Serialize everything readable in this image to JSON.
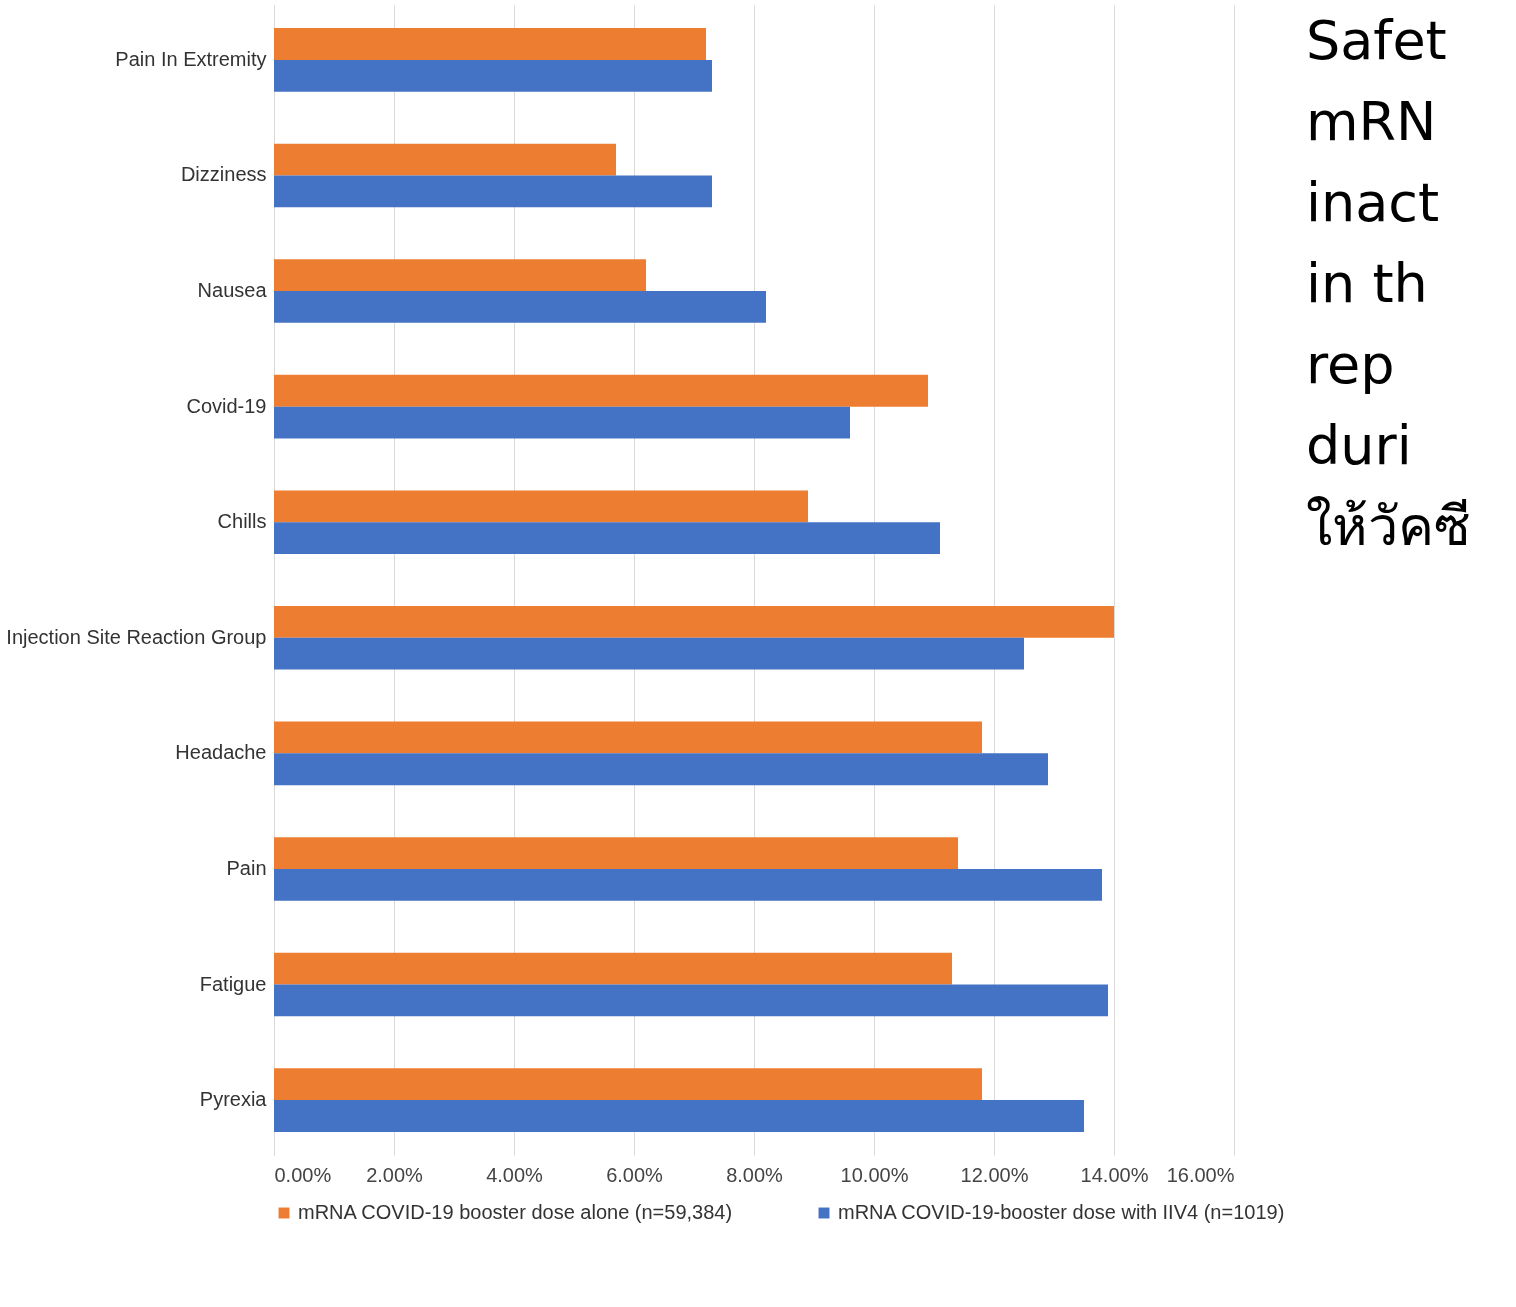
{
  "chart_data": {
    "type": "bar",
    "orientation": "horizontal",
    "categories": [
      "Pain In Extremity",
      "Dizziness",
      "Nausea",
      "Covid-19",
      "Chills",
      "Injection Site Reaction Group",
      "Headache",
      "Pain",
      "Fatigue",
      "Pyrexia"
    ],
    "series": [
      {
        "name": "mRNA COVID-19 booster dose alone (n=59,384)",
        "color": "#ed7d31",
        "values": [
          7.2,
          5.7,
          6.2,
          10.9,
          8.9,
          14.0,
          11.8,
          11.4,
          11.3,
          11.8
        ]
      },
      {
        "name": "mRNA COVID-19-booster dose with  IIV4 (n=1019)",
        "color": "#4472c4",
        "values": [
          7.3,
          7.3,
          8.2,
          9.6,
          11.1,
          12.5,
          12.9,
          13.8,
          13.9,
          13.5
        ]
      }
    ],
    "xlim": [
      0,
      16
    ],
    "xticks": [
      {
        "value": 0,
        "label": "0.00%"
      },
      {
        "value": 2,
        "label": "2.00%"
      },
      {
        "value": 4,
        "label": "4.00%"
      },
      {
        "value": 6,
        "label": "6.00%"
      },
      {
        "value": 8,
        "label": "8.00%"
      },
      {
        "value": 10,
        "label": "10.00%"
      },
      {
        "value": 12,
        "label": "12.00%"
      },
      {
        "value": 14,
        "label": "14.00%"
      },
      {
        "value": 16,
        "label": "16.00%"
      }
    ],
    "grid": "x",
    "legend": "bottom",
    "annotations": [
      "Safet",
      "mRN",
      "inact",
      "in th",
      "rep",
      "duri",
      "ให้วัคซี"
    ]
  }
}
